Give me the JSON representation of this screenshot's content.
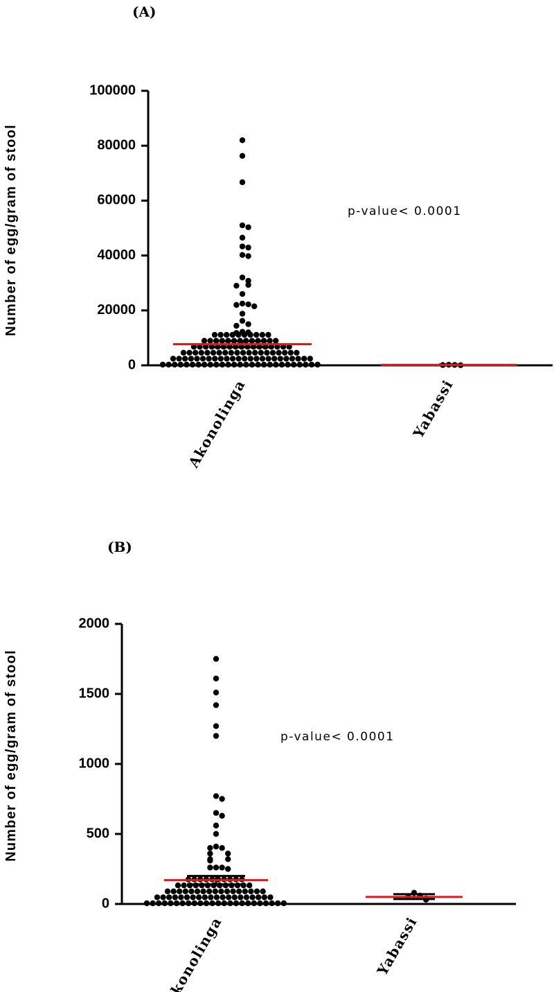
{
  "chart_data": [
    {
      "type": "scatter",
      "panel_label": "(A)",
      "ylabel": "Number of egg/gram of stool",
      "ylim": [
        0,
        100000
      ],
      "yticks": [
        0,
        20000,
        40000,
        60000,
        80000,
        100000
      ],
      "categories": [
        "Akonolinga",
        "Yabassi"
      ],
      "annotation": "p-value< 0.0001",
      "mean_color": "#e3171b",
      "series": [
        {
          "category": "Akonolinga",
          "mean": 7700,
          "sem_range": [
            6600,
            8800
          ],
          "points": [
            82000,
            76300,
            66700,
            51000,
            50300,
            46500,
            43300,
            42900,
            40200,
            39800,
            32000,
            30800,
            29300,
            29000,
            26000,
            22500,
            22200,
            22000,
            21500,
            18800,
            16200,
            15000,
            14400,
            12200,
            12000,
            11800
          ]
        },
        {
          "category": "Yabassi",
          "mean": 150,
          "sem_range": [
            0,
            300
          ],
          "points": [
            200,
            150,
            100,
            50
          ]
        }
      ]
    },
    {
      "type": "scatter",
      "panel_label": "(B)",
      "ylabel": "Number of egg/gram of stool",
      "ylim": [
        0,
        2000
      ],
      "yticks": [
        0,
        500,
        1000,
        1500,
        2000
      ],
      "categories": [
        "Akonolinga",
        "Yabassi"
      ],
      "annotation": "p-value< 0.0001",
      "mean_color": "#e3171b",
      "series": [
        {
          "category": "Akonolinga",
          "mean": 170,
          "sem_range": [
            140,
            200
          ],
          "points": [
            1750,
            1610,
            1510,
            1420,
            1270,
            1200,
            770,
            750,
            650,
            630,
            560,
            500,
            410,
            400,
            400,
            360,
            360,
            320,
            320,
            310,
            260,
            260,
            260,
            250
          ]
        },
        {
          "category": "Yabassi",
          "mean": 50,
          "sem_range": [
            35,
            70
          ],
          "points": [
            80,
            60,
            50,
            40,
            30
          ]
        }
      ]
    }
  ]
}
